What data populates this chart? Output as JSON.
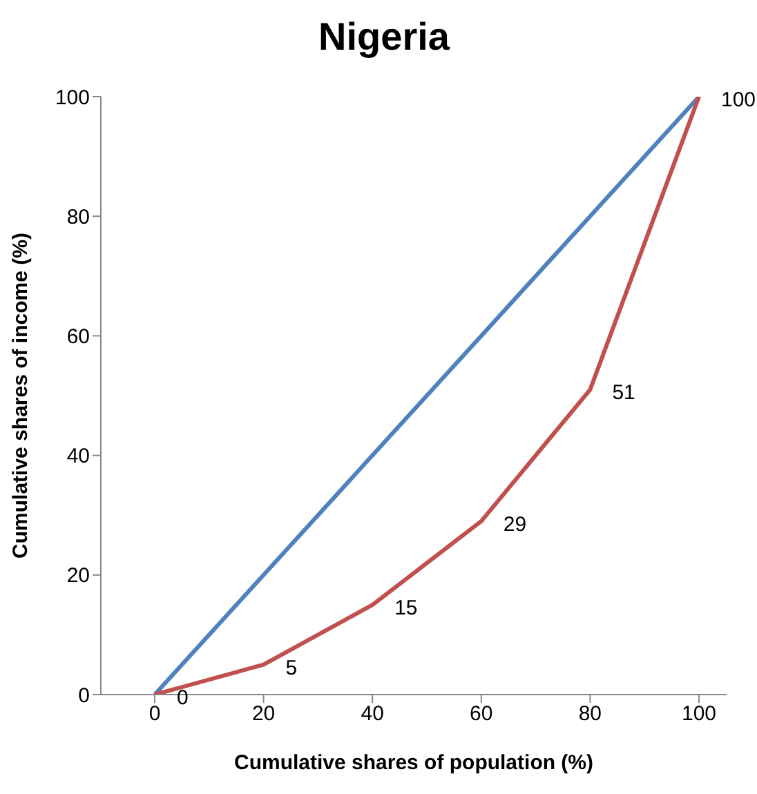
{
  "chart_data": {
    "type": "line",
    "title": "Nigeria",
    "xlabel": "Cumulative shares of population (%)",
    "ylabel": "Cumulative shares of income (%)",
    "categories": [
      "0",
      "20",
      "40",
      "60",
      "80",
      "100"
    ],
    "series": [
      {
        "color": "#4f81bd",
        "values": [
          0,
          20,
          40,
          60,
          80,
          100
        ]
      },
      {
        "color": "#c0504d",
        "values": [
          0,
          5,
          15,
          29,
          51,
          100
        ],
        "value_labels": [
          "0",
          "5",
          "15",
          "29",
          "51",
          "100"
        ]
      }
    ],
    "ylim": [
      0,
      100
    ],
    "yticks": [
      0,
      20,
      40,
      60,
      80,
      100
    ],
    "grid": false,
    "legend": false,
    "marker": "none",
    "line_style": "solid"
  }
}
